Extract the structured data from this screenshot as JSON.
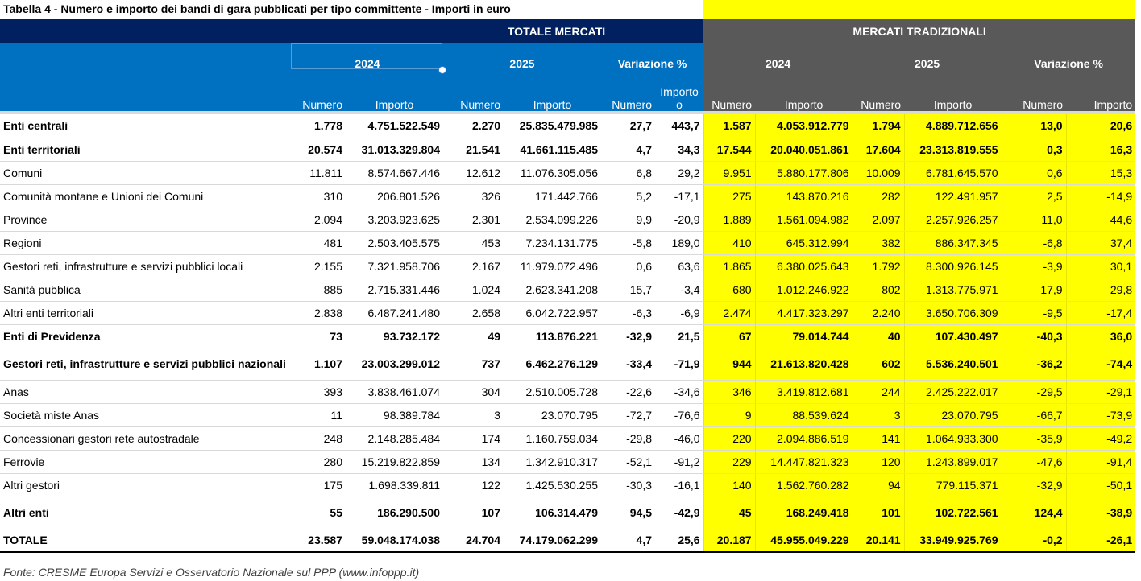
{
  "title": "Tabella 4 - Numero e importo dei bandi di gara pubblicati per tipo committente - Importi in euro",
  "colors": {
    "navy": "#002060",
    "blue": "#0070c0",
    "gray": "#595959",
    "yellow": "#ffff00"
  },
  "groups": {
    "totale": "TOTALE MERCATI",
    "tradizionali": "MERCATI TRADIZIONALI"
  },
  "years": {
    "y1": "2024",
    "y2": "2025",
    "var": "Variazione %"
  },
  "cols": {
    "numero": "Numero",
    "importo": "Importo",
    "importo_wrapped": "Importo",
    "importo_tail": "o"
  },
  "rows": [
    {
      "label": "Enti centrali",
      "bold": true,
      "v": [
        "1.778",
        "4.751.522.549",
        "2.270",
        "25.835.479.985",
        "27,7",
        "443,7",
        "1.587",
        "4.053.912.779",
        "1.794",
        "4.889.712.656",
        "13,0",
        "20,6"
      ]
    },
    {
      "label": "Enti territoriali",
      "bold": true,
      "v": [
        "20.574",
        "31.013.329.804",
        "21.541",
        "41.661.115.485",
        "4,7",
        "34,3",
        "17.544",
        "20.040.051.861",
        "17.604",
        "23.313.819.555",
        "0,3",
        "16,3"
      ]
    },
    {
      "label": "Comuni",
      "bold": false,
      "v": [
        "11.811",
        "8.574.667.446",
        "12.612",
        "11.076.305.056",
        "6,8",
        "29,2",
        "9.951",
        "5.880.177.806",
        "10.009",
        "6.781.645.570",
        "0,6",
        "15,3"
      ]
    },
    {
      "label": "Comunità montane e Unioni dei Comuni",
      "bold": false,
      "v": [
        "310",
        "206.801.526",
        "326",
        "171.442.766",
        "5,2",
        "-17,1",
        "275",
        "143.870.216",
        "282",
        "122.491.957",
        "2,5",
        "-14,9"
      ]
    },
    {
      "label": "Province",
      "bold": false,
      "v": [
        "2.094",
        "3.203.923.625",
        "2.301",
        "2.534.099.226",
        "9,9",
        "-20,9",
        "1.889",
        "1.561.094.982",
        "2.097",
        "2.257.926.257",
        "11,0",
        "44,6"
      ]
    },
    {
      "label": "Regioni",
      "bold": false,
      "v": [
        "481",
        "2.503.405.575",
        "453",
        "7.234.131.775",
        "-5,8",
        "189,0",
        "410",
        "645.312.994",
        "382",
        "886.347.345",
        "-6,8",
        "37,4"
      ]
    },
    {
      "label": "Gestori reti, infrastrutture e servizi pubblici locali",
      "bold": false,
      "v": [
        "2.155",
        "7.321.958.706",
        "2.167",
        "11.979.072.496",
        "0,6",
        "63,6",
        "1.865",
        "6.380.025.643",
        "1.792",
        "8.300.926.145",
        "-3,9",
        "30,1"
      ]
    },
    {
      "label": "Sanità pubblica",
      "bold": false,
      "v": [
        "885",
        "2.715.331.446",
        "1.024",
        "2.623.341.208",
        "15,7",
        "-3,4",
        "680",
        "1.012.246.922",
        "802",
        "1.313.775.971",
        "17,9",
        "29,8"
      ]
    },
    {
      "label": "Altri enti territoriali",
      "bold": false,
      "v": [
        "2.838",
        "6.487.241.480",
        "2.658",
        "6.042.722.957",
        "-6,3",
        "-6,9",
        "2.474",
        "4.417.323.297",
        "2.240",
        "3.650.706.309",
        "-9,5",
        "-17,4"
      ]
    },
    {
      "label": "Enti di Previdenza",
      "bold": true,
      "v": [
        "73",
        "93.732.172",
        "49",
        "113.876.221",
        "-32,9",
        "21,5",
        "67",
        "79.014.744",
        "40",
        "107.430.497",
        "-40,3",
        "36,0"
      ]
    },
    {
      "label": "Gestori reti, infrastrutture e servizi pubblici nazionali",
      "bold": true,
      "tall": true,
      "v": [
        "1.107",
        "23.003.299.012",
        "737",
        "6.462.276.129",
        "-33,4",
        "-71,9",
        "944",
        "21.613.820.428",
        "602",
        "5.536.240.501",
        "-36,2",
        "-74,4"
      ]
    },
    {
      "label": "Anas",
      "bold": false,
      "v": [
        "393",
        "3.838.461.074",
        "304",
        "2.510.005.728",
        "-22,6",
        "-34,6",
        "346",
        "3.419.812.681",
        "244",
        "2.425.222.017",
        "-29,5",
        "-29,1"
      ]
    },
    {
      "label": "Società miste Anas",
      "bold": false,
      "v": [
        "11",
        "98.389.784",
        "3",
        "23.070.795",
        "-72,7",
        "-76,6",
        "9",
        "88.539.624",
        "3",
        "23.070.795",
        "-66,7",
        "-73,9"
      ]
    },
    {
      "label": "Concessionari gestori rete autostradale",
      "bold": false,
      "v": [
        "248",
        "2.148.285.484",
        "174",
        "1.160.759.034",
        "-29,8",
        "-46,0",
        "220",
        "2.094.886.519",
        "141",
        "1.064.933.300",
        "-35,9",
        "-49,2"
      ]
    },
    {
      "label": "Ferrovie",
      "bold": false,
      "v": [
        "280",
        "15.219.822.859",
        "134",
        "1.342.910.317",
        "-52,1",
        "-91,2",
        "229",
        "14.447.821.323",
        "120",
        "1.243.899.017",
        "-47,6",
        "-91,4"
      ]
    },
    {
      "label": "Altri gestori",
      "bold": false,
      "v": [
        "175",
        "1.698.339.811",
        "122",
        "1.425.530.255",
        "-30,3",
        "-16,1",
        "140",
        "1.562.760.282",
        "94",
        "779.115.371",
        "-32,9",
        "-50,1"
      ]
    },
    {
      "label": "Altri enti",
      "bold": true,
      "tall": true,
      "v": [
        "55",
        "186.290.500",
        "107",
        "106.314.479",
        "94,5",
        "-42,9",
        "45",
        "168.249.418",
        "101",
        "102.722.561",
        "124,4",
        "-38,9"
      ]
    },
    {
      "label": "TOTALE",
      "bold": true,
      "total": true,
      "v": [
        "23.587",
        "59.048.174.038",
        "24.704",
        "74.179.062.299",
        "4,7",
        "25,6",
        "20.187",
        "45.955.049.229",
        "20.141",
        "33.949.925.769",
        "-0,2",
        "-26,1"
      ]
    }
  ],
  "footnote": "Fonte: CRESME Europa Servizi e Osservatorio Nazionale sul PPP (www.infoppp.it)"
}
